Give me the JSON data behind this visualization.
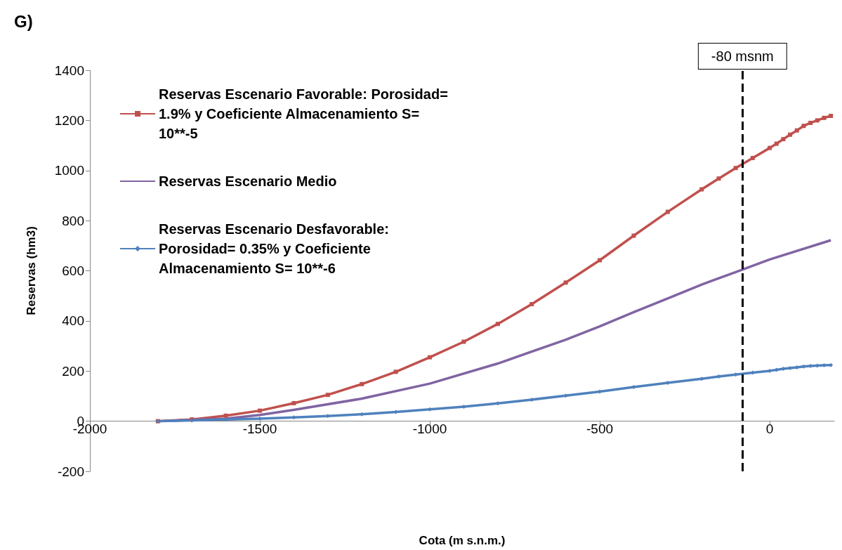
{
  "chart_data": {
    "type": "line",
    "annotations": [
      "G)"
    ],
    "xlabel": "Cota (m s.n.m.)",
    "ylabel": "Reservas (hm3)",
    "xlim": [
      -2000,
      190
    ],
    "xticks": [
      -2000,
      -1500,
      -1000,
      -500,
      0
    ],
    "ylim": [
      -200,
      1400
    ],
    "yticks": [
      -200,
      0,
      200,
      400,
      600,
      800,
      1000,
      1200,
      1400
    ],
    "grid": false,
    "legend": "top left",
    "series": [
      {
        "name": "Reservas Escenario Favorable: Porosidad= 1.9% y Coeficiente Almacenamiento S= 10**-5",
        "color": "#c0504d",
        "marker": "square",
        "x": [
          -1800,
          -1700,
          -1600,
          -1500,
          -1400,
          -1300,
          -1200,
          -1100,
          -1000,
          -900,
          -800,
          -700,
          -600,
          -500,
          -400,
          -300,
          -200,
          -150,
          -100,
          -50,
          0,
          20,
          40,
          60,
          80,
          100,
          120,
          140,
          160,
          180
        ],
        "values": [
          0,
          7,
          22,
          42,
          72,
          105,
          148,
          197,
          255,
          317,
          388,
          467,
          553,
          642,
          740,
          835,
          925,
          968,
          1010,
          1050,
          1090,
          1107,
          1125,
          1143,
          1160,
          1178,
          1190,
          1200,
          1210,
          1218
        ]
      },
      {
        "name": "Reservas Escenario Medio",
        "color": "#8064a2",
        "marker": "none",
        "x": [
          -1800,
          -1600,
          -1500,
          -1400,
          -1200,
          -1000,
          -800,
          -600,
          -500,
          -400,
          -300,
          -200,
          -100,
          0,
          180
        ],
        "values": [
          0,
          10,
          25,
          45,
          90,
          150,
          230,
          325,
          378,
          435,
          490,
          545,
          595,
          645,
          722
        ]
      },
      {
        "name": "Reservas Escenario Desfavorable: Porosidad= 0.35% y Coeficiente Almacenamiento S= 10**-6",
        "color": "#4f81bd",
        "marker": "diamond",
        "x": [
          -1800,
          -1700,
          -1600,
          -1500,
          -1400,
          -1300,
          -1200,
          -1100,
          -1000,
          -900,
          -800,
          -700,
          -600,
          -500,
          -400,
          -300,
          -200,
          -150,
          -100,
          -50,
          0,
          20,
          40,
          60,
          80,
          100,
          120,
          140,
          160,
          180
        ],
        "values": [
          0,
          3,
          7,
          10,
          15,
          21,
          28,
          37,
          47,
          58,
          71,
          86,
          102,
          118,
          136,
          153,
          169,
          178,
          186,
          194,
          201,
          205,
          209,
          212,
          215,
          218,
          220,
          222,
          223,
          224
        ]
      }
    ],
    "ref_lines": [
      {
        "axis": "x",
        "value": -80,
        "label": "-80 msnm",
        "color": "#000000",
        "line_style": "dashed"
      }
    ]
  }
}
